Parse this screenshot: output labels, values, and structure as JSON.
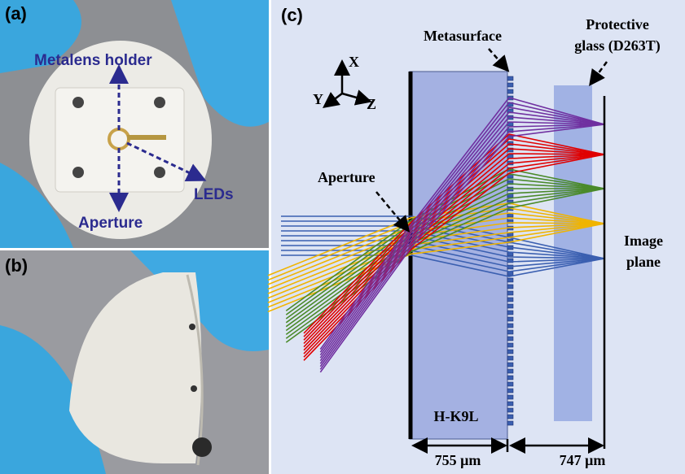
{
  "panels": {
    "a": {
      "label": "(a)",
      "annotations": [
        "Metalens holder",
        "LEDs",
        "Aperture"
      ]
    },
    "b": {
      "label": "(b)"
    },
    "c": {
      "label": "(c)",
      "axes": [
        "X",
        "Y",
        "Z"
      ],
      "metasurface": "Metasurface",
      "protective_glass": [
        "Protective",
        "glass (D263T)"
      ],
      "aperture": "Aperture",
      "image_plane": [
        "Image",
        "plane"
      ],
      "substrate": "H-K9L",
      "dimensions": [
        "755 μm",
        "747 μm"
      ]
    }
  }
}
